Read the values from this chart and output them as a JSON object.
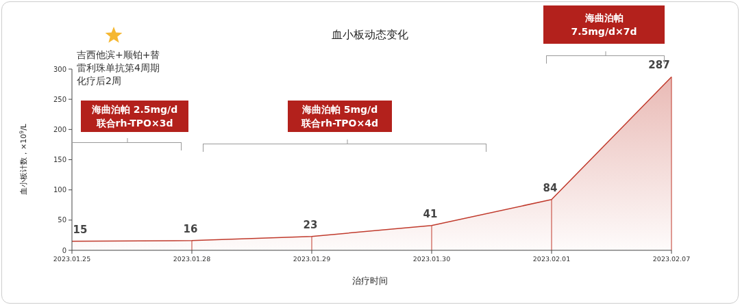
{
  "chart_data": {
    "type": "area",
    "title": "血小板动态变化",
    "xlabel": "治疗时间",
    "ylabel": "血小板计数，×10$^{9}$/L",
    "categories": [
      "2023.01.25",
      "2023.01.28",
      "2023.01.29",
      "2023.01.30",
      "2023.02.01",
      "2023.02.07"
    ],
    "values": [
      15,
      16,
      23,
      41,
      84,
      287
    ],
    "color": "#c0392b",
    "data_labels": true,
    "grid": false,
    "ylim": [
      0,
      300
    ],
    "yticks": [
      0,
      50,
      100,
      150,
      200,
      250,
      300
    ],
    "annotations": [
      "吉西他滨+顺铂+替雷利珠单抗第4周期化疗后2周",
      "海曲泊帕 2.5mg/d\n联合rh-TPO×3d",
      "海曲泊帕 5mg/d\n联合rh-TPO×4d",
      "海曲泊帕\n7.5mg/d×7d"
    ]
  }
}
